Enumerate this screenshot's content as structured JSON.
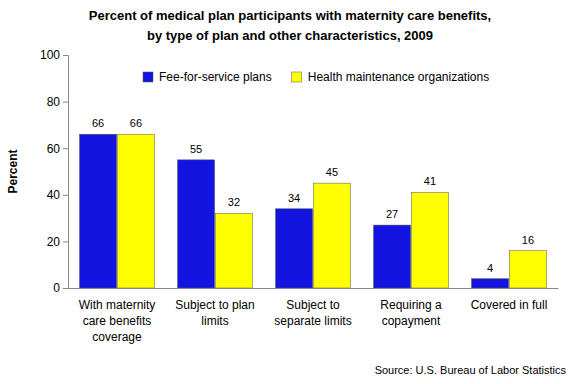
{
  "chart_data": {
    "type": "bar",
    "title": [
      "Percent of medical plan participants with maternity care benefits,",
      "by type of plan and other characteristics, 2009"
    ],
    "y_label": "Percent",
    "source": "Source: U.S. Bureau of Labor Statistics",
    "categories": [
      "With maternity care benefits coverage",
      "Subject to  plan limits",
      "Subject to separate limits",
      "Requiring a copayment",
      "Covered in full"
    ],
    "series": [
      {
        "name": "Fee-for-service plans",
        "color": "#1414e0",
        "values": [
          66,
          55,
          34,
          27,
          4
        ]
      },
      {
        "name": "Health maintenance organizations",
        "color": "#ffff00",
        "values": [
          66,
          32,
          45,
          41,
          16
        ]
      }
    ],
    "ylim": [
      0,
      100
    ],
    "yticks": [
      0,
      20,
      40,
      60,
      80,
      100
    ],
    "grid": false,
    "legend": "top",
    "data_labels": true
  }
}
